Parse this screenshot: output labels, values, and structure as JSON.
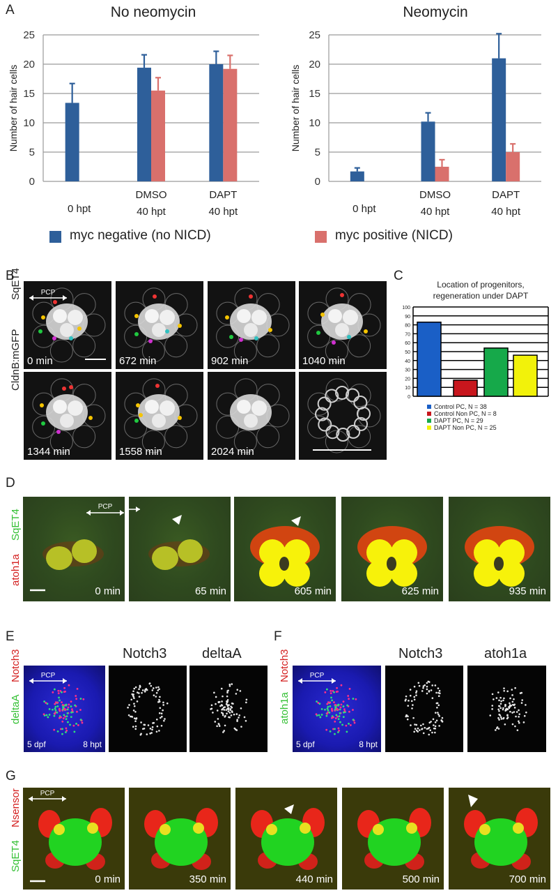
{
  "panels": {
    "A": "A",
    "B": "B",
    "C": "C",
    "D": "D",
    "E": "E",
    "F": "F",
    "G": "G"
  },
  "chart_data": [
    {
      "type": "bar",
      "title": "No neomycin",
      "ylabel": "Number of hair cells",
      "ylim": [
        0,
        25
      ],
      "yticks": [
        0,
        5,
        10,
        15,
        20,
        25
      ],
      "categories": [
        [
          "0 hpt",
          ""
        ],
        [
          "DMSO",
          "40 hpt"
        ],
        [
          "DAPT",
          "40 hpt"
        ]
      ],
      "series": [
        {
          "name": "myc negative (no NICD)",
          "color": "#2e5f9a",
          "values": [
            13.4,
            19.4,
            20.0
          ],
          "errors": [
            3.3,
            2.2,
            2.2
          ]
        },
        {
          "name": "myc positive (NICD)",
          "color": "#d9706c",
          "values": [
            null,
            15.5,
            19.2
          ],
          "errors": [
            null,
            2.2,
            2.3
          ]
        }
      ],
      "grid": true
    },
    {
      "type": "bar",
      "title": "Neomycin",
      "ylabel": "Number of hair cells",
      "ylim": [
        0,
        25
      ],
      "yticks": [
        0,
        5,
        10,
        15,
        20,
        25
      ],
      "categories": [
        [
          "0 hpt",
          ""
        ],
        [
          "DMSO",
          "40 hpt"
        ],
        [
          "DAPT",
          "40 hpt"
        ]
      ],
      "series": [
        {
          "name": "myc negative (no NICD)",
          "color": "#2e5f9a",
          "values": [
            1.7,
            10.2,
            21.0
          ],
          "errors": [
            0.6,
            1.5,
            4.2
          ]
        },
        {
          "name": "myc positive (NICD)",
          "color": "#d9706c",
          "values": [
            null,
            2.5,
            5.0
          ],
          "errors": [
            null,
            1.2,
            1.4
          ]
        }
      ],
      "grid": true
    },
    {
      "type": "bar",
      "title": "Location of progenitors, regeneration under DAPT",
      "ylim": [
        0,
        100
      ],
      "yticks": [
        0,
        10,
        20,
        30,
        40,
        50,
        60,
        70,
        80,
        90,
        100
      ],
      "categories": [
        "Control PC",
        "Control Non PC",
        "DAPT PC",
        "DAPT Non PC"
      ],
      "values": [
        83,
        18,
        54,
        46
      ],
      "colors": [
        "#1a5fc6",
        "#c8161d",
        "#16a94a",
        "#f2f20a"
      ],
      "legend": [
        "Control PC, N = 38",
        "Control Non PC, N = 8",
        "DAPT PC, N = 29",
        "DAPT Non PC, N = 25"
      ],
      "grid": true
    }
  ],
  "legend_main": {
    "neg": "myc negative (no NICD)",
    "pos": "myc positive (NICD)",
    "neg_color": "#2e5f9a",
    "pos_color": "#d9706c"
  },
  "panelB": {
    "label_top": "SqET4",
    "label_bottom": "CldnB:mGFP",
    "pcp": "PCP",
    "times": [
      "0 min",
      "672 min",
      "902 min",
      "1040 min",
      "1344 min",
      "1558 min",
      "2024 min",
      ""
    ]
  },
  "panelD": {
    "label_green": "SqET4",
    "label_red": "atoh1a",
    "pcp": "PCP",
    "times": [
      "0 min",
      "65 min",
      "605 min",
      "625 min",
      "935 min"
    ]
  },
  "panelE": {
    "label_red": "Notch3",
    "label_green": "deltaA",
    "pcp": "PCP",
    "left": "5 dpf",
    "right": "8 hpt",
    "h1": "Notch3",
    "h2": "deltaA"
  },
  "panelF": {
    "label_red": "Notch3",
    "label_green": "atoh1a",
    "pcp": "PCP",
    "left": "5 dpf",
    "right": "8 hpt",
    "h1": "Notch3",
    "h2": "atoh1a"
  },
  "panelG": {
    "label_red": "Nsensor",
    "label_green": "SqET4",
    "pcp": "PCP",
    "times": [
      "0 min",
      "350 min",
      "440 min",
      "500 min",
      "700 min"
    ]
  }
}
